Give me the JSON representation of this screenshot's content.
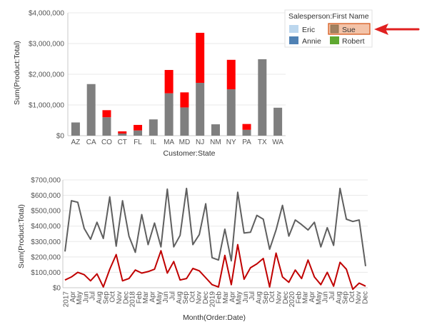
{
  "colors": {
    "grid": "#e8e8e8",
    "axis": "#c8c8c8",
    "gray_series": "#7f7f7f",
    "red_series": "#ff0000",
    "line_gray": "#5f5f5f",
    "line_red": "#c00000",
    "legend_eric": "#bcd7ee",
    "legend_annie": "#4f81b4",
    "legend_sue_fill": "#f3c3a8",
    "legend_sue_border": "#d55b1f",
    "legend_robert": "#5fa830",
    "arrow": "#e02020"
  },
  "legend": {
    "title": "Salesperson:First Name",
    "items": [
      {
        "label": "Eric",
        "color": "#bcd7ee",
        "selected": false
      },
      {
        "label": "Sue",
        "color": "#a08060",
        "selected": true
      },
      {
        "label": "Annie",
        "color": "#4f81b4",
        "selected": false
      },
      {
        "label": "Robert",
        "color": "#5fa830",
        "selected": false
      }
    ]
  },
  "chart_data": [
    {
      "type": "bar",
      "stacked": true,
      "xlabel": "Customer:State",
      "ylabel": "Sum(Product:Total)",
      "categories": [
        "AZ",
        "CA",
        "CO",
        "CT",
        "FL",
        "IL",
        "MA",
        "MD",
        "NJ",
        "NM",
        "NY",
        "PA",
        "TX",
        "WA"
      ],
      "series": [
        {
          "color": "#7f7f7f",
          "values": [
            430000,
            1680000,
            600000,
            70000,
            170000,
            530000,
            1380000,
            920000,
            1720000,
            370000,
            1510000,
            190000,
            2490000,
            910000
          ]
        },
        {
          "color": "#ff0000",
          "values": [
            0,
            0,
            230000,
            70000,
            180000,
            0,
            760000,
            490000,
            1630000,
            0,
            960000,
            190000,
            0,
            0
          ]
        }
      ],
      "ylim": [
        0,
        4000000
      ],
      "yticks": [
        "$0",
        "$1,000,000",
        "$2,000,000",
        "$3,000,000",
        "$4,000,000"
      ],
      "ytick_values": [
        0,
        1000000,
        2000000,
        3000000,
        4000000
      ],
      "grid": true
    },
    {
      "type": "line",
      "xlabel": "Month(Order:Date)",
      "ylabel": "Sum(Product:Total)",
      "x": [
        "2017",
        "Feb",
        "Mar",
        "Apr",
        "May",
        "Jun",
        "Jul",
        "Aug",
        "Sep",
        "Oct",
        "Nov",
        "Dec",
        "2018",
        "Feb",
        "Mar",
        "Apr",
        "May",
        "Jun",
        "Jul",
        "Aug",
        "Sep",
        "Oct",
        "Nov",
        "Dec",
        "2019",
        "Feb",
        "Mar",
        "Apr",
        "May",
        "Jun",
        "Jul",
        "Aug",
        "Sep",
        "Oct",
        "Nov",
        "Dec",
        "2020",
        "Feb",
        "Mar",
        "Apr",
        "May",
        "Jun",
        "Jul",
        "Aug",
        "Sep",
        "Oct",
        "Nov",
        "Dec"
      ],
      "xtick_labels": [
        "2017",
        "Apr",
        "May",
        "Jun",
        "Jul",
        "Aug",
        "Sep",
        "Oct",
        "Nov",
        "Dec",
        "2018",
        "Feb",
        "Mar",
        "Apr",
        "May",
        "Jun",
        "Jul",
        "Aug",
        "Sep",
        "Oct",
        "Nov",
        "Dec",
        "2019",
        "Feb",
        "Mar",
        "Apr",
        "May",
        "Jun",
        "Jul",
        "Aug",
        "Sep",
        "Oct",
        "Nov",
        "Dec",
        "2020",
        "Feb",
        "Mar",
        "Apr",
        "May",
        "Jun",
        "Jul",
        "Aug",
        "Sep",
        "Oct",
        "Nov",
        "Dec"
      ],
      "series": [
        {
          "color": "#5f5f5f",
          "values": [
            235000,
            565000,
            555000,
            385000,
            315000,
            425000,
            320000,
            590000,
            270000,
            565000,
            335000,
            230000,
            475000,
            280000,
            420000,
            265000,
            640000,
            265000,
            340000,
            645000,
            280000,
            345000,
            545000,
            195000,
            180000,
            380000,
            175000,
            620000,
            355000,
            360000,
            470000,
            445000,
            250000,
            375000,
            535000,
            335000,
            440000,
            410000,
            375000,
            425000,
            265000,
            390000,
            275000,
            645000,
            445000,
            430000,
            440000,
            140000
          ]
        },
        {
          "color": "#c00000",
          "values": [
            50000,
            70000,
            100000,
            85000,
            45000,
            90000,
            5000,
            120000,
            215000,
            45000,
            60000,
            115000,
            95000,
            105000,
            120000,
            240000,
            95000,
            170000,
            50000,
            60000,
            125000,
            110000,
            65000,
            20000,
            5000,
            210000,
            20000,
            280000,
            55000,
            130000,
            155000,
            190000,
            5000,
            225000,
            70000,
            35000,
            115000,
            60000,
            180000,
            70000,
            20000,
            100000,
            10000,
            165000,
            120000,
            -10000,
            30000,
            10000
          ]
        }
      ],
      "ylim": [
        0,
        700000
      ],
      "yticks": [
        "$0",
        "$100,000",
        "$200,000",
        "$300,000",
        "$400,000",
        "$500,000",
        "$600,000",
        "$700,000"
      ],
      "ytick_values": [
        0,
        100000,
        200000,
        300000,
        400000,
        500000,
        600000,
        700000
      ],
      "grid": true
    }
  ]
}
